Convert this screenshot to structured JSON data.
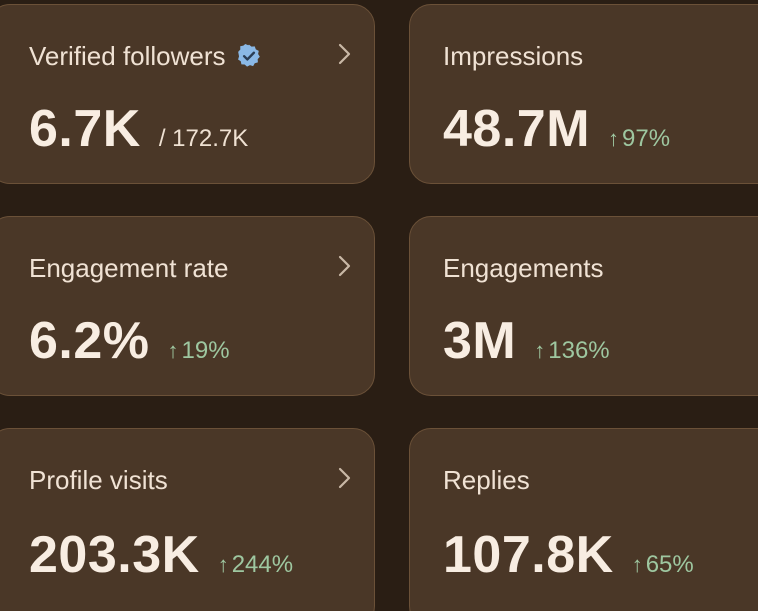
{
  "cards": [
    {
      "label": "Verified followers",
      "value": "6.7K",
      "sub": "/ 172.7K",
      "delta": "",
      "has_chevron": true,
      "has_badge": true
    },
    {
      "label": "Impressions",
      "value": "48.7M",
      "sub": "",
      "delta": "97%",
      "has_chevron": false,
      "has_badge": false
    },
    {
      "label": "Engagement rate",
      "value": "6.2%",
      "sub": "",
      "delta": "19%",
      "has_chevron": true,
      "has_badge": false
    },
    {
      "label": "Engagements",
      "value": "3M",
      "sub": "",
      "delta": "136%",
      "has_chevron": false,
      "has_badge": false
    },
    {
      "label": "Profile visits",
      "value": "203.3K",
      "sub": "",
      "delta": "244%",
      "has_chevron": true,
      "has_badge": false
    },
    {
      "label": "Replies",
      "value": "107.8K",
      "sub": "",
      "delta": "65%",
      "has_chevron": false,
      "has_badge": false
    }
  ],
  "icons": {
    "chevron": "chevron-right-icon",
    "badge": "verified-badge-icon",
    "delta_arrow": "arrow-up-icon"
  },
  "colors": {
    "background": "#2a1e14",
    "card": "#4a3727",
    "card_border": "#6b5138",
    "text": "#f4e8dc",
    "positive": "#9ec7a0",
    "badge": "#8ab8e6"
  }
}
